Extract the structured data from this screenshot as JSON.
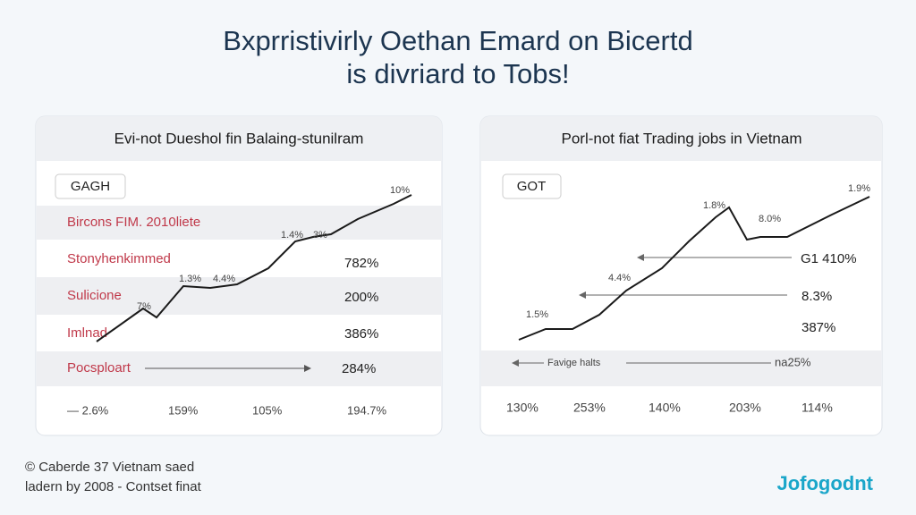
{
  "header": {
    "title_lines": [
      "Bxprristivirly Oethan Emard on Bicertd",
      "is divriard to Tobs!"
    ]
  },
  "panels": [
    {
      "title": "Evi-not Dueshol fin Balaing-stunilram",
      "tag": "GAGH",
      "rows": [
        {
          "label": "Bircons FIM. 2010liete"
        },
        {
          "label": "Stonyhenkimmed",
          "value": "782%"
        },
        {
          "label": "Sulicione",
          "value": "200%"
        },
        {
          "label": "Imlnad",
          "value": "386%"
        },
        {
          "label": "Pocsploart",
          "value": "284%"
        }
      ],
      "line_labels": [
        "10%",
        "1.4%",
        "3%",
        "1.3%",
        "4.4%",
        "7%"
      ],
      "footer": [
        "— 2.6%",
        "159%",
        "105%",
        "194.7%"
      ]
    },
    {
      "title": "Porl-not fiat Trading jobs in Vietnam",
      "tag": "GOT",
      "line_labels": [
        "1.8%",
        "1.9%",
        "8.0%",
        "4.4%",
        "1.5%"
      ],
      "values": [
        "G1 410%",
        "8.3%",
        "387%"
      ],
      "band": {
        "label": "Favige halts",
        "value": "na25%"
      },
      "footer": [
        "130%",
        "253%",
        "140%",
        "203%",
        "114%"
      ]
    }
  ],
  "footer": {
    "lines": [
      "© Caberde 37 Vietnam saed",
      "ladern by 2008 - Contset finat"
    ],
    "logo": "Jofogodnt"
  }
}
